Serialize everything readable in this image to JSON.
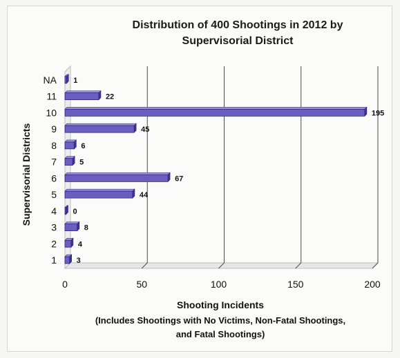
{
  "chart_data": {
    "type": "bar",
    "orientation": "horizontal",
    "title": [
      "Distribution of 400 Shootings in 2012 by",
      "Supervisorial District"
    ],
    "ylabel": "Supervisorial Districts",
    "xlabel": "Shooting Incidents",
    "xlabel_note": [
      "(Includes Shootings with No Victims, Non-Fatal Shootings,",
      "and Fatal Shootings)"
    ],
    "categories": [
      "1",
      "2",
      "3",
      "4",
      "5",
      "6",
      "7",
      "8",
      "9",
      "10",
      "11",
      "NA"
    ],
    "values": [
      3,
      4,
      8,
      0,
      44,
      67,
      5,
      6,
      45,
      195,
      22,
      1
    ],
    "xlim": [
      0,
      200
    ],
    "xticks": [
      0,
      50,
      100,
      150,
      200
    ],
    "grid": "vertical",
    "legend": "none",
    "bar_color": "#6a5fbf",
    "bar_edge_color": "#2c2680"
  }
}
